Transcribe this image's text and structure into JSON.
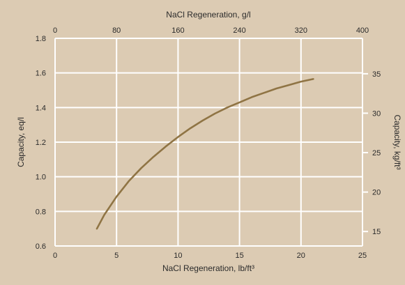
{
  "chart_data": {
    "type": "line",
    "bg_color": "#dccbb3",
    "plot_bg_color": "#dccbb3",
    "grid_color": "#ffffff",
    "line_color": "#8f7444",
    "grid": true,
    "x_bottom": {
      "label": "NaCl Regeneration, lb/ft³",
      "range": [
        0,
        25
      ],
      "ticks": [
        "0",
        "5",
        "10",
        "15",
        "20",
        "25"
      ]
    },
    "x_top": {
      "label": "NaCl Regeneration, g/l",
      "range": [
        0,
        400
      ],
      "ticks": [
        "0",
        "80",
        "160",
        "240",
        "320",
        "400"
      ]
    },
    "y_left": {
      "label": "Capacity, eq/l",
      "range": [
        0.6,
        1.8
      ],
      "ticks": [
        "0.6",
        "0.8",
        "1.0",
        "1.2",
        "1.4",
        "1.6",
        "1.8"
      ]
    },
    "y_right": {
      "label": "Capacity, kg/ft³",
      "values": [
        "15",
        "20",
        "25",
        "30",
        "35"
      ]
    },
    "series": [
      {
        "x": [
          3.4,
          4.0,
          5.0,
          6.0,
          7.0,
          8.0,
          9.0,
          10.0,
          11.0,
          12.0,
          13.0,
          14.0,
          15.0,
          16.0,
          17.0,
          18.0,
          19.0,
          20.0,
          21.0
        ],
        "y": [
          0.7,
          0.78,
          0.885,
          0.975,
          1.05,
          1.115,
          1.175,
          1.23,
          1.28,
          1.325,
          1.365,
          1.4,
          1.43,
          1.46,
          1.485,
          1.51,
          1.53,
          1.55,
          1.565
        ]
      }
    ]
  }
}
